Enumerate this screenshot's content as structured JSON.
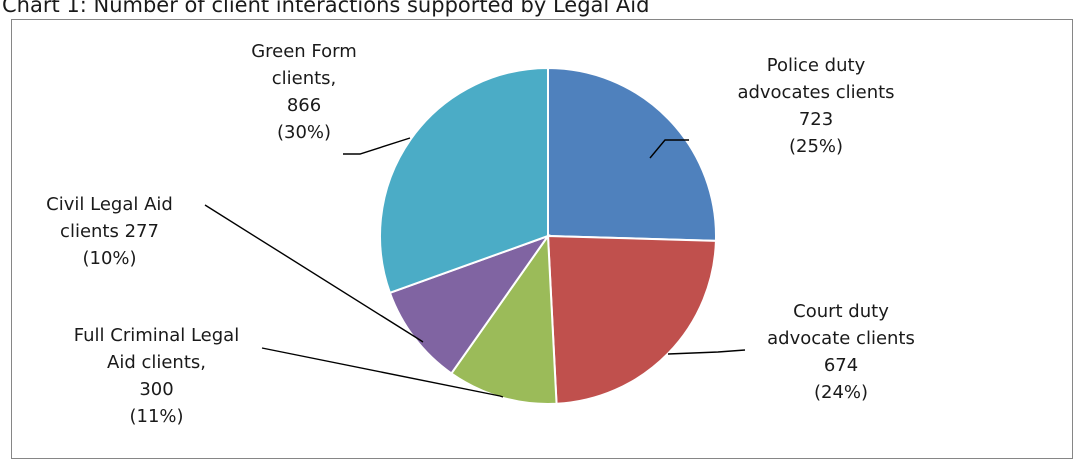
{
  "chart_data": {
    "type": "pie",
    "title": "Chart 1: Number of client interactions supported by Legal Aid",
    "slices": [
      {
        "label": "Police duty advocates clients",
        "value": 723,
        "percent": "25%",
        "color": "#4F81BD",
        "lines": [
          "Police duty",
          "advocates clients",
          "723",
          "(25%)"
        ]
      },
      {
        "label": "Court duty advocate clients",
        "value": 674,
        "percent": "24%",
        "color": "#C0504D",
        "lines": [
          "Court duty",
          "advocate clients",
          "674",
          "(24%)"
        ]
      },
      {
        "label": "Full Criminal Legal Aid clients",
        "value": 300,
        "percent": "11%",
        "color": "#9BBB59",
        "lines": [
          "Full Criminal Legal",
          "Aid clients,",
          "300",
          "(11%)"
        ]
      },
      {
        "label": "Civil Legal Aid clients",
        "value": 277,
        "percent": "10%",
        "color": "#8064A2",
        "lines": [
          "Civil Legal Aid",
          "clients 277",
          "(10%)"
        ]
      },
      {
        "label": "Green Form clients",
        "value": 866,
        "percent": "30%",
        "color": "#4BACC6",
        "lines": [
          "Green Form",
          "clients,",
          "866",
          "(30%)"
        ]
      }
    ],
    "start_angle_deg": 0,
    "direction": "clockwise",
    "legend": "none"
  }
}
